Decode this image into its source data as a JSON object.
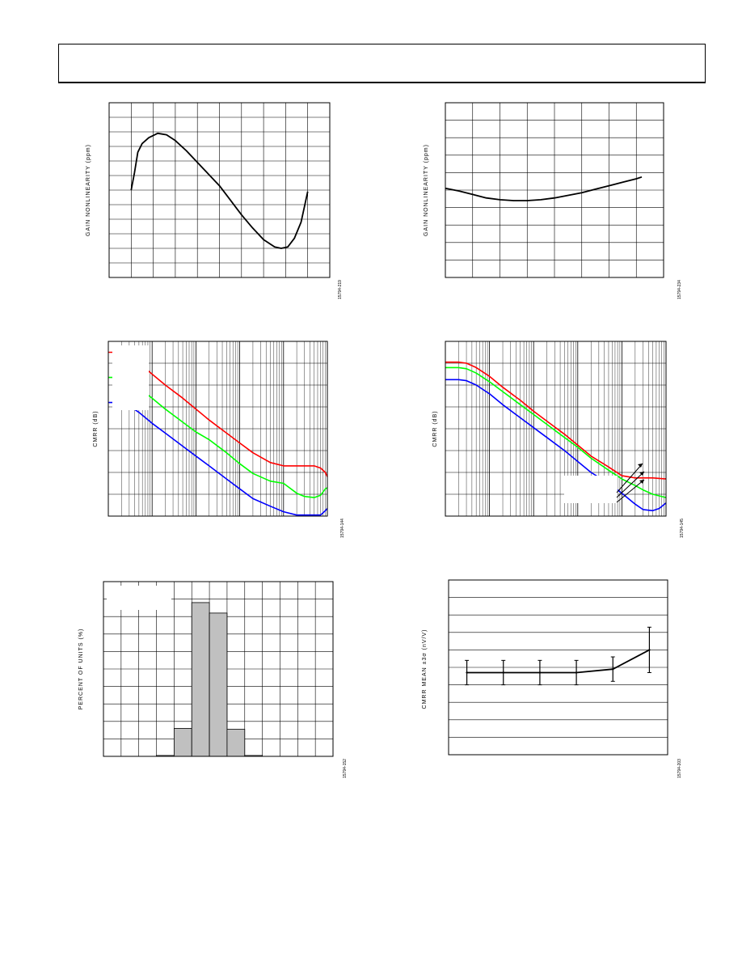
{
  "header": {},
  "chart_data": [
    {
      "id": "chart1",
      "type": "line",
      "ylabel": "GAIN NONLINEARITY (ppm)",
      "code": "15794-219",
      "xlim": [
        0,
        10
      ],
      "ylim": [
        0,
        12
      ],
      "x_divisions": 10,
      "y_divisions": 12,
      "grid": true,
      "x_scale": "linear",
      "series": [
        {
          "color": "#000000",
          "x": [
            1.0,
            1.15,
            1.3,
            1.5,
            1.8,
            2.2,
            2.6,
            3.0,
            3.5,
            4.0,
            4.5,
            5.0,
            5.5,
            6.0,
            6.5,
            7.0,
            7.5,
            7.8,
            8.1,
            8.4,
            8.7,
            9.0
          ],
          "y": [
            6.0,
            7.2,
            8.6,
            9.2,
            9.6,
            9.9,
            9.8,
            9.4,
            8.7,
            7.9,
            7.1,
            6.3,
            5.3,
            4.3,
            3.4,
            2.6,
            2.1,
            2.0,
            2.1,
            2.7,
            3.8,
            5.9
          ]
        }
      ]
    },
    {
      "id": "chart2",
      "type": "line",
      "ylabel": "GAIN NONLINEARITY (ppm)",
      "code": "15794-234",
      "xlim": [
        0,
        8
      ],
      "ylim": [
        0,
        10
      ],
      "x_divisions": 8,
      "y_divisions": 10,
      "grid": true,
      "x_scale": "linear",
      "series": [
        {
          "color": "#000000",
          "x": [
            0,
            0.5,
            1.0,
            1.5,
            2.0,
            2.5,
            3.0,
            3.5,
            4.0,
            4.5,
            5.0,
            5.5,
            6.0,
            6.5,
            7.0,
            7.2
          ],
          "y": [
            5.1,
            4.95,
            4.75,
            4.55,
            4.45,
            4.4,
            4.4,
            4.45,
            4.55,
            4.7,
            4.85,
            5.05,
            5.25,
            5.45,
            5.65,
            5.75
          ]
        }
      ]
    },
    {
      "id": "chart3",
      "type": "line",
      "ylabel": "CMRR (dB)",
      "code": "15794-144",
      "xlim": [
        1,
        100000
      ],
      "ylim": [
        0,
        8
      ],
      "y_divisions": 8,
      "grid": true,
      "x_scale": "log",
      "series": [
        {
          "color": "#ff0000",
          "x": [
            1,
            2,
            3,
            5,
            10,
            20,
            50,
            100,
            200,
            500,
            1000,
            2000,
            5000,
            10000,
            20000,
            30000,
            50000,
            70000,
            90000,
            100000
          ],
          "y": [
            7.5,
            7.5,
            7.35,
            7.0,
            6.5,
            6.0,
            5.4,
            4.9,
            4.4,
            3.8,
            3.35,
            2.9,
            2.45,
            2.3,
            2.3,
            2.3,
            2.3,
            2.2,
            2.0,
            1.8
          ]
        },
        {
          "color": "#00ff00",
          "x": [
            1,
            2,
            3,
            5,
            10,
            20,
            50,
            100,
            200,
            500,
            1000,
            2000,
            5000,
            10000,
            20000,
            30000,
            50000,
            70000,
            90000,
            100000
          ],
          "y": [
            6.35,
            6.35,
            6.2,
            5.85,
            5.4,
            4.9,
            4.3,
            3.85,
            3.5,
            2.9,
            2.4,
            1.95,
            1.6,
            1.5,
            1.05,
            0.9,
            0.85,
            0.95,
            1.25,
            1.3
          ]
        },
        {
          "color": "#0000ff",
          "x": [
            1,
            2,
            3,
            5,
            10,
            20,
            50,
            100,
            200,
            500,
            1000,
            2000,
            5000,
            10000,
            20000,
            30000,
            50000,
            70000,
            90000,
            100000
          ],
          "y": [
            5.2,
            5.2,
            5.05,
            4.75,
            4.25,
            3.8,
            3.2,
            2.75,
            2.3,
            1.7,
            1.25,
            0.8,
            0.45,
            0.2,
            0.05,
            0.05,
            0.05,
            0.05,
            0.25,
            0.35
          ]
        }
      ]
    },
    {
      "id": "chart4",
      "type": "line",
      "ylabel": "CMRR (dB)",
      "code": "15794-145",
      "xlim": [
        1,
        100000
      ],
      "ylim": [
        0,
        8
      ],
      "y_divisions": 8,
      "grid": true,
      "x_scale": "log",
      "series": [
        {
          "color": "#ff0000",
          "x": [
            1,
            2,
            3,
            5,
            10,
            20,
            50,
            100,
            200,
            500,
            1000,
            2000,
            5000,
            10000,
            20000,
            30000,
            50000,
            100000
          ],
          "y": [
            7.05,
            7.05,
            7.0,
            6.8,
            6.4,
            5.9,
            5.3,
            4.8,
            4.35,
            3.75,
            3.25,
            2.75,
            2.25,
            1.85,
            1.75,
            1.75,
            1.75,
            1.7
          ]
        },
        {
          "color": "#00ff00",
          "x": [
            1,
            2,
            3,
            5,
            10,
            20,
            50,
            100,
            200,
            500,
            1000,
            2000,
            5000,
            10000,
            20000,
            30000,
            50000,
            100000
          ],
          "y": [
            6.8,
            6.8,
            6.75,
            6.55,
            6.15,
            5.7,
            5.1,
            4.65,
            4.2,
            3.6,
            3.15,
            2.65,
            2.1,
            1.7,
            1.4,
            1.2,
            1.0,
            0.85
          ]
        },
        {
          "color": "#0000ff",
          "x": [
            1,
            2,
            3,
            5,
            10,
            20,
            50,
            100,
            200,
            500,
            1000,
            2000,
            5000,
            10000,
            20000,
            30000,
            50000,
            70000,
            100000
          ],
          "y": [
            6.25,
            6.25,
            6.2,
            6.0,
            5.6,
            5.1,
            4.5,
            4.05,
            3.6,
            3.0,
            2.5,
            2.0,
            1.5,
            1.05,
            0.55,
            0.3,
            0.25,
            0.35,
            0.6
          ]
        }
      ]
    },
    {
      "id": "chart5",
      "type": "bar",
      "ylabel": "PERCENT OF UNITS (%)",
      "code": "15794-152",
      "xlim": [
        0,
        13
      ],
      "ylim": [
        0,
        10
      ],
      "x_divisions": 13,
      "y_divisions": 10,
      "grid": true,
      "bars": [
        {
          "x": 3,
          "value": 0.05
        },
        {
          "x": 4,
          "value": 1.6
        },
        {
          "x": 5,
          "value": 8.8
        },
        {
          "x": 6,
          "value": 8.2
        },
        {
          "x": 7,
          "value": 1.55
        },
        {
          "x": 8,
          "value": 0.05
        }
      ]
    },
    {
      "id": "chart6",
      "type": "line",
      "ylabel": "CMRR MEAN ±3σ (nV/V)",
      "code": "15794-203",
      "xlim": [
        0,
        6
      ],
      "ylim": [
        0,
        10
      ],
      "y_divisions": 10,
      "grid": "horizontal",
      "series": [
        {
          "color": "#000000",
          "x": [
            0.5,
            1.5,
            2.5,
            3.5,
            4.5,
            5.5
          ],
          "y": [
            4.7,
            4.7,
            4.7,
            4.7,
            4.9,
            6.0
          ],
          "err": [
            0.7,
            0.7,
            0.7,
            0.7,
            0.7,
            1.3
          ]
        }
      ]
    }
  ]
}
